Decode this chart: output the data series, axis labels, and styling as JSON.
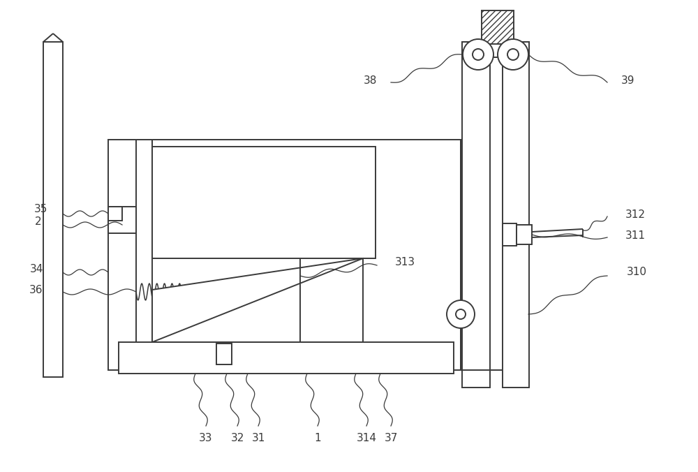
{
  "bg_color": "#ffffff",
  "line_color": "#3a3a3a",
  "figsize": [
    10.0,
    6.76
  ],
  "lw": 1.4,
  "fs": 12
}
